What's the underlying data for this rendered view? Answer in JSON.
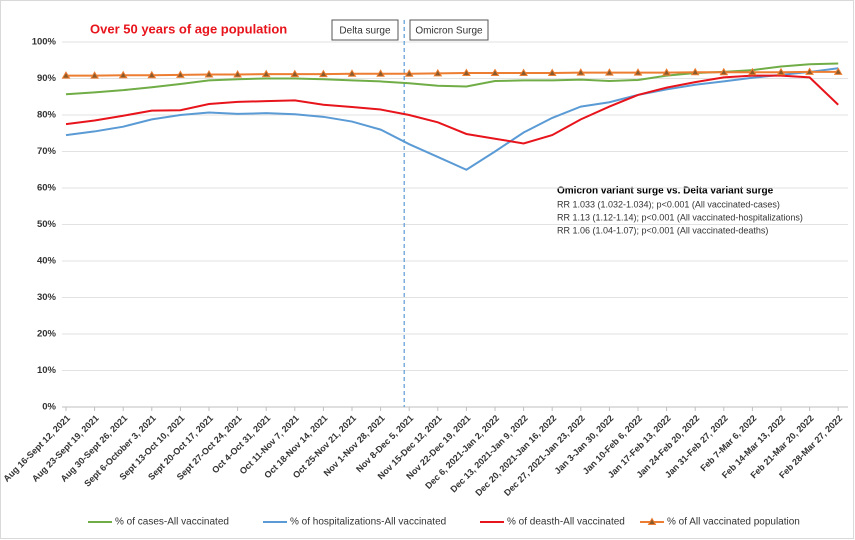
{
  "chart_data": {
    "type": "line",
    "title": "Over 50 years of age population",
    "annotations": [
      "Delta surge",
      "Omicron Surge"
    ],
    "note_title": "Omicron variant surge vs. Delta variant surge",
    "note_lines": [
      "RR 1.033 (1.032-1.034); p<0.001 (All vaccinated-cases)",
      "RR 1.13 (1.12-1.14); p<0.001 (All vaccinated-hospitalizations)",
      "RR 1.06 (1.04-1.07); p<0.001 (All vaccinated-deaths)"
    ],
    "categories": [
      "Aug 16-Sept 12, 2021",
      "Aug 23-Sept 19, 2021",
      "Aug 30-Sept 26, 2021",
      "Sept 6-October 3, 2021",
      "Sept 13-Oct 10, 2021",
      "Sept 20-Oct 17, 2021",
      "Sept 27-Oct 24, 2021",
      "Oct 4-Oct 31, 2021",
      "Oct 11-Nov 7, 2021",
      "Oct 18-Nov 14, 2021",
      "Oct 25-Nov 21, 2021",
      "Nov 1-Nov 28, 2021",
      "Nov 8-Dec 5, 2021",
      "Nov 15-Dec 12, 2021",
      "Nov 22-Dec 19, 2021",
      "Dec 6, 2021-Jan 2, 2022",
      "Dec 13, 2021-Jan 9, 2022",
      "Dec 20, 2021-Jan 16, 2022",
      "Dec 27, 2021-Jan 23, 2022",
      "Jan 3-Jan 30, 2022",
      "Jan 10-Feb 6, 2022",
      "Jan 17-Feb 13, 2022",
      "Jan 24-Feb 20, 2022",
      "Jan 31-Feb 27, 2022",
      "Feb 7-Mar 6, 2022",
      "Feb 14-Mar 13, 2022",
      "Feb 21-Mar 20, 2022",
      "Feb 28-Mar 27, 2022"
    ],
    "series": [
      {
        "name": "% of cases-All vaccinated",
        "color": "#70ad47",
        "values": [
          85.7,
          86.2,
          86.8,
          87.6,
          88.5,
          89.5,
          89.8,
          90.0,
          90.0,
          89.8,
          89.5,
          89.2,
          88.7,
          88.0,
          87.8,
          89.3,
          89.5,
          89.5,
          89.7,
          89.3,
          89.6,
          90.8,
          91.5,
          91.8,
          92.3,
          93.3,
          93.9,
          94.1
        ]
      },
      {
        "name": "% of hospitalizations-All vaccinated",
        "color": "#5b9bd5",
        "values": [
          74.5,
          75.5,
          76.8,
          78.8,
          80.0,
          80.7,
          80.3,
          80.5,
          80.2,
          79.5,
          78.2,
          76.0,
          72.0,
          68.5,
          65.0,
          70.0,
          75.2,
          79.2,
          82.3,
          83.5,
          85.5,
          87.0,
          88.3,
          89.2,
          90.2,
          91.0,
          91.8,
          92.8
        ]
      },
      {
        "name": "% of deasth-All vaccinated",
        "color": "#e8141c",
        "values": [
          77.5,
          78.5,
          79.8,
          81.2,
          81.3,
          83.0,
          83.6,
          83.8,
          84.0,
          82.8,
          82.2,
          81.5,
          80.0,
          78.0,
          74.8,
          73.5,
          72.2,
          74.5,
          78.8,
          82.3,
          85.5,
          87.5,
          89.0,
          90.3,
          90.8,
          90.8,
          90.3,
          82.8
        ]
      },
      {
        "name": "% of All vaccinated population",
        "color": "#ed7d31",
        "marker": "triangle",
        "values": [
          90.8,
          90.8,
          90.9,
          90.9,
          91.0,
          91.1,
          91.1,
          91.2,
          91.2,
          91.2,
          91.3,
          91.3,
          91.3,
          91.4,
          91.5,
          91.5,
          91.5,
          91.5,
          91.6,
          91.6,
          91.6,
          91.6,
          91.7,
          91.7,
          91.7,
          91.7,
          91.8,
          91.8
        ]
      }
    ],
    "ylim": [
      0,
      100
    ],
    "yticks": [
      {
        "value": 0,
        "label": "0%"
      },
      {
        "value": 10,
        "label": "10%"
      },
      {
        "value": 20,
        "label": "20%"
      },
      {
        "value": 30,
        "label": "30%"
      },
      {
        "value": 40,
        "label": "40%"
      },
      {
        "value": 50,
        "label": "50%"
      },
      {
        "value": 60,
        "label": "60%"
      },
      {
        "value": 70,
        "label": "70%"
      },
      {
        "value": 80,
        "label": "80%"
      },
      {
        "value": 90,
        "label": "90%"
      },
      {
        "value": 100,
        "label": "100%"
      }
    ],
    "grid": true
  }
}
